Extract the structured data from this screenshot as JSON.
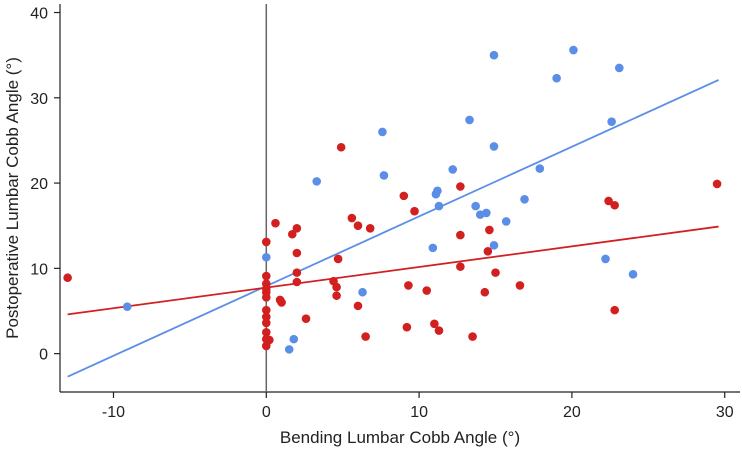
{
  "chart_data": {
    "type": "scatter",
    "xlabel": "Bending Lumbar Cobb Angle (°)",
    "ylabel": "Postoperative Lumbar Cobb Angle (°)",
    "xlim": [
      -13.5,
      31
    ],
    "ylim": [
      -4.5,
      41
    ],
    "xticks": [
      -10,
      0,
      10,
      20,
      30
    ],
    "yticks": [
      0,
      10,
      20,
      30,
      40
    ],
    "xtick_labels": [
      "-10",
      "0",
      "10",
      "20",
      "30"
    ],
    "ytick_labels": [
      "0",
      "10",
      "20",
      "30",
      "40"
    ],
    "reference_line_x": 0,
    "grid": false,
    "series": [
      {
        "color": "#5b8ee6",
        "points": [
          [
            -9.1,
            5.5
          ],
          [
            0,
            11.3
          ],
          [
            1.5,
            0.5
          ],
          [
            1.8,
            1.7
          ],
          [
            3.3,
            20.2
          ],
          [
            6.3,
            7.2
          ],
          [
            7.6,
            26.0
          ],
          [
            7.7,
            20.9
          ],
          [
            10.9,
            12.4
          ],
          [
            11.1,
            18.7
          ],
          [
            11.2,
            19.1
          ],
          [
            11.3,
            17.3
          ],
          [
            12.2,
            21.6
          ],
          [
            13.3,
            27.4
          ],
          [
            13.7,
            17.3
          ],
          [
            14.0,
            16.3
          ],
          [
            14.4,
            16.5
          ],
          [
            14.9,
            24.3
          ],
          [
            14.9,
            35.0
          ],
          [
            14.9,
            12.7
          ],
          [
            15.7,
            15.5
          ],
          [
            16.9,
            18.1
          ],
          [
            17.9,
            21.7
          ],
          [
            19.0,
            32.3
          ],
          [
            20.1,
            35.6
          ],
          [
            22.2,
            11.1
          ],
          [
            22.6,
            27.2
          ],
          [
            23.1,
            33.5
          ],
          [
            24.0,
            9.3
          ]
        ],
        "fit_line": [
          [
            -13.0,
            -2.7
          ],
          [
            29.6,
            32.1
          ]
        ]
      },
      {
        "color": "#d21f1f",
        "points": [
          [
            -13.0,
            8.9
          ],
          [
            0,
            13.1
          ],
          [
            0,
            9.1
          ],
          [
            0,
            8.2
          ],
          [
            0,
            7.6
          ],
          [
            0,
            7.2
          ],
          [
            0,
            6.6
          ],
          [
            0,
            5.1
          ],
          [
            0,
            4.3
          ],
          [
            0,
            3.6
          ],
          [
            0,
            2.5
          ],
          [
            0,
            1.7
          ],
          [
            0,
            0.9
          ],
          [
            0.2,
            1.6
          ],
          [
            0.6,
            15.3
          ],
          [
            0.9,
            6.3
          ],
          [
            1.0,
            6.0
          ],
          [
            1.7,
            14.0
          ],
          [
            2.0,
            14.7
          ],
          [
            2.0,
            11.8
          ],
          [
            2.0,
            9.5
          ],
          [
            2.0,
            8.4
          ],
          [
            2.6,
            4.1
          ],
          [
            4.4,
            8.5
          ],
          [
            4.6,
            7.8
          ],
          [
            4.6,
            6.8
          ],
          [
            4.7,
            11.1
          ],
          [
            4.9,
            24.2
          ],
          [
            5.6,
            15.9
          ],
          [
            6.0,
            15.0
          ],
          [
            6.0,
            5.6
          ],
          [
            6.5,
            2.0
          ],
          [
            6.8,
            14.7
          ],
          [
            9.0,
            18.5
          ],
          [
            9.2,
            3.1
          ],
          [
            9.3,
            8.0
          ],
          [
            9.7,
            16.7
          ],
          [
            10.5,
            7.4
          ],
          [
            11.0,
            3.5
          ],
          [
            11.3,
            2.7
          ],
          [
            12.7,
            19.6
          ],
          [
            12.7,
            13.9
          ],
          [
            12.7,
            10.2
          ],
          [
            13.5,
            2.0
          ],
          [
            14.3,
            7.2
          ],
          [
            14.5,
            12.0
          ],
          [
            14.6,
            14.5
          ],
          [
            15.0,
            9.5
          ],
          [
            16.6,
            8.0
          ],
          [
            22.4,
            17.9
          ],
          [
            22.8,
            17.4
          ],
          [
            22.8,
            5.1
          ],
          [
            29.5,
            19.9
          ]
        ],
        "fit_line": [
          [
            -13.0,
            4.6
          ],
          [
            29.6,
            14.9
          ]
        ]
      }
    ]
  }
}
